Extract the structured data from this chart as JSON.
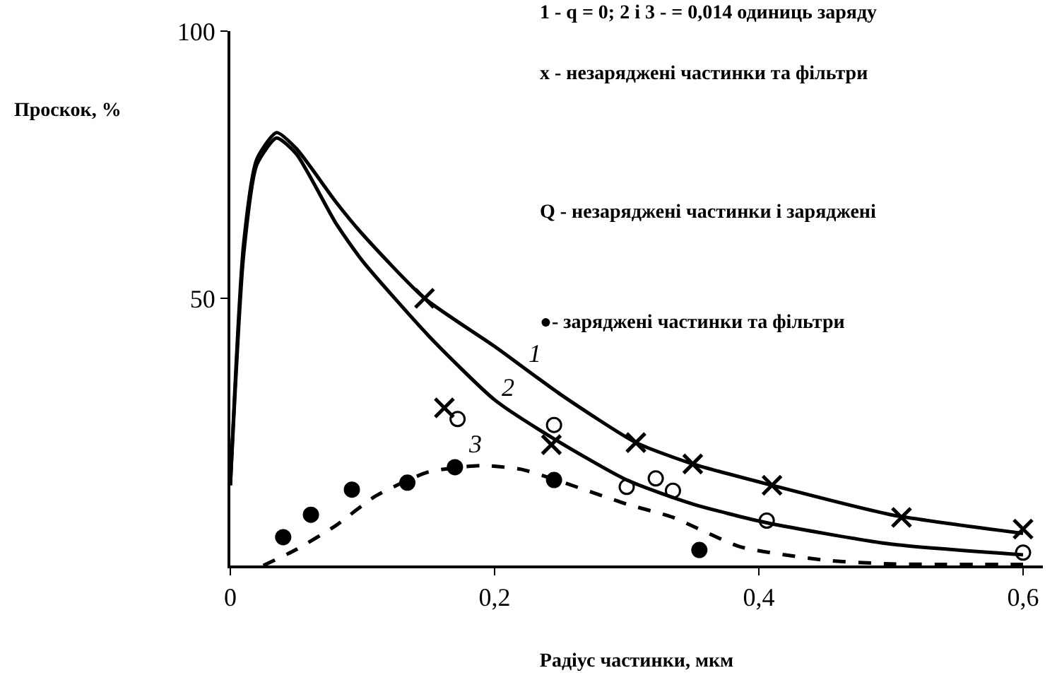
{
  "chart_data": {
    "type": "line",
    "xlabel": "Радіус частинки, мкм",
    "ylabel": "Проскок, %",
    "xlim": [
      0,
      0.615
    ],
    "ylim": [
      0,
      100
    ],
    "xticks": [
      0,
      {
        "value": 0.2,
        "label": "0,2"
      },
      {
        "value": 0.4,
        "label": "0,4"
      },
      {
        "value": 0.6,
        "label": "0,6"
      }
    ],
    "yticks": [
      50,
      100
    ],
    "series": [
      {
        "color": "#000000",
        "line_style": "solid",
        "marker": "none",
        "x": [
          0,
          0.01,
          0.02,
          0.035,
          0.05,
          0.08,
          0.1,
          0.147,
          0.2,
          0.25,
          0.307,
          0.35,
          0.41,
          0.5,
          0.6
        ],
        "values": [
          15,
          60,
          76,
          81,
          78,
          68,
          62,
          50,
          41,
          32,
          23,
          19,
          15,
          9.5,
          6
        ]
      },
      {
        "color": "#000000",
        "line_style": "solid",
        "marker": "none",
        "x": [
          0,
          0.01,
          0.02,
          0.035,
          0.05,
          0.08,
          0.1,
          0.15,
          0.2,
          0.243,
          0.3,
          0.35,
          0.406,
          0.5,
          0.6
        ],
        "values": [
          15,
          58,
          75,
          80,
          77,
          64,
          57,
          43,
          31,
          24,
          16,
          11.5,
          8,
          4,
          2
        ]
      },
      {
        "color": "#000000",
        "line_style": "dashed",
        "marker": "none",
        "x": [
          0.025,
          0.05,
          0.08,
          0.11,
          0.15,
          0.19,
          0.22,
          0.243,
          0.3,
          0.335,
          0.386,
          0.45,
          0.5,
          0.6
        ],
        "values": [
          0,
          3,
          7.5,
          13,
          17.5,
          18.7,
          18,
          16.3,
          11.5,
          9,
          3.5,
          1,
          0.3,
          0.2
        ]
      },
      {
        "type": "scatter",
        "color": "#000000",
        "marker": "cross",
        "x": [
          0.147,
          0.162,
          0.243,
          0.307,
          0.35,
          0.41,
          0.508,
          0.6
        ],
        "values": [
          50,
          29.5,
          22.6,
          23,
          19,
          15,
          9,
          6.8
        ]
      },
      {
        "type": "scatter",
        "color": "#000000",
        "marker": "circle-open",
        "x": [
          0.172,
          0.245,
          0.3,
          0.322,
          0.335,
          0.406,
          0.6
        ],
        "values": [
          27.4,
          26.3,
          14.7,
          16.3,
          14,
          8.4,
          2.4
        ]
      },
      {
        "type": "scatter",
        "color": "#000000",
        "marker": "circle",
        "x": [
          0.04,
          0.061,
          0.092,
          0.134,
          0.17,
          0.245,
          0.355
        ],
        "values": [
          5.3,
          9.5,
          14.2,
          15.5,
          18.4,
          16,
          2.9
        ]
      }
    ],
    "annotations": [
      {
        "text": "1",
        "x": 0.23,
        "y": 35.5
      },
      {
        "text": "2",
        "x": 0.21,
        "y": 29
      },
      {
        "text": "3",
        "x": 0.185,
        "y": 18.6
      },
      "1 - q = 0; 2 і 3 - = 0,014 одиниць заряду",
      "x - незаряджені частинки та фільтри",
      "Q - незаряджені частинки і заряджені",
      "●- заряджені частинки та фільтри"
    ]
  }
}
